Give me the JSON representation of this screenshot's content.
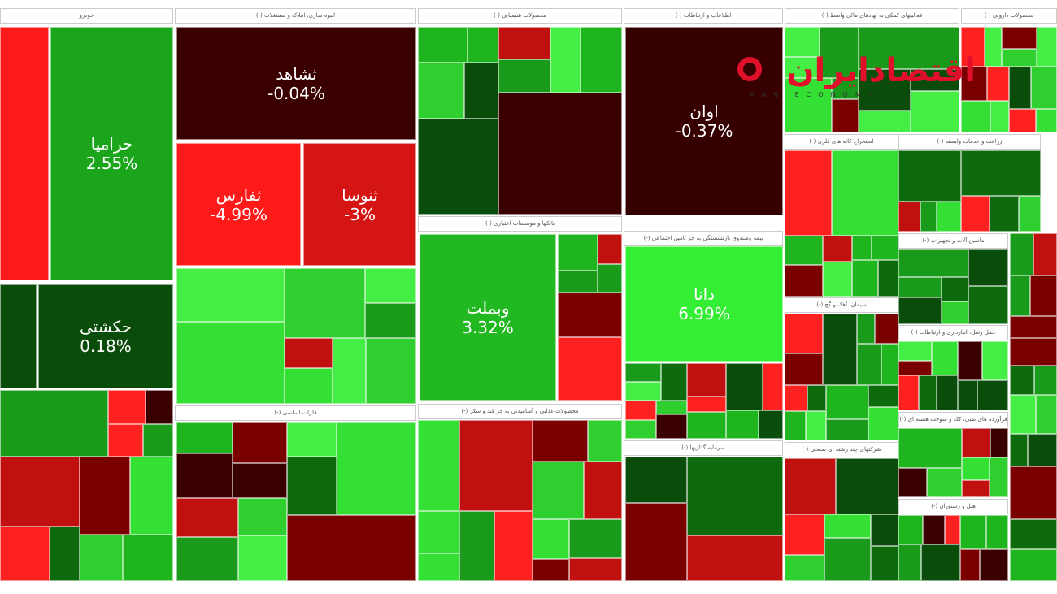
{
  "chart_data": {
    "type": "heatmap",
    "subtype": "treemap",
    "colors": {
      "strong_up": "#33ee33",
      "up": "#1aa51a",
      "slight_up": "#0a5a0a",
      "slight_down": "#3a0000",
      "down": "#cc1111",
      "strong_down": "#ff1a1a"
    },
    "sectors": [
      {
        "name": "خودرو"
      },
      {
        "name": "انبوه سازی، املاک و مستغلات (-)"
      },
      {
        "name": "محصولات شیمیایی (-)"
      },
      {
        "name": "اطلاعات و ارتباطات (-)"
      },
      {
        "name": "فعالیتهای کمکی به نهادهای مالی واسط (-)"
      },
      {
        "name": "محصولات دارویی (-)"
      },
      {
        "name": "بانکها و موسسات اعتباری (-)"
      },
      {
        "name": "فلزات اساسی (-)"
      },
      {
        "name": "محصولات غذایی و آشامیدنی به جز قند و شکر (-)"
      },
      {
        "name": "بیمه وصندوق بازنشستگی به جز تامین اجتماعی (-)"
      },
      {
        "name": "سرمایه گذاریها (-)"
      },
      {
        "name": "استخراج کانه های فلزی (-)"
      },
      {
        "name": "زراعت و خدمات وابسته (-)"
      },
      {
        "name": "ماشین آلات و تجهیزات (-)"
      },
      {
        "name": "سیمان، آهک و گچ (-)"
      },
      {
        "name": "حمل ونقل، انبارداری و ارتباطات (-)"
      },
      {
        "name": "شرکتهای چند رشته ای صنعتی (-)"
      },
      {
        "name": "فرآورده های نفتی، کک و سوخت هسته ای (-)"
      },
      {
        "name": "هتل و رستوران (-)"
      }
    ],
    "stocks": [
      {
        "name": "حرامیا",
        "change": "2.55%",
        "color": "#1aa51a"
      },
      {
        "name": "حکشتی",
        "change": "0.18%",
        "color": "#0a4d0a"
      },
      {
        "name": "ثشاهد",
        "change": "-0.04%",
        "color": "#3a0000"
      },
      {
        "name": "ثفارس",
        "change": "-4.99%",
        "color": "#ff1a1a"
      },
      {
        "name": "ثنوسا",
        "change": "-3%",
        "color": "#d51414"
      },
      {
        "name": "وبملت",
        "change": "3.32%",
        "color": "#22b822"
      },
      {
        "name": "اوان",
        "change": "-0.37%",
        "color": "#360000"
      },
      {
        "name": "دانا",
        "change": "6.99%",
        "color": "#33ee33"
      }
    ]
  },
  "logo": {
    "text": "اقتصادایران",
    "subtitle": "IRAN ECONOMY"
  }
}
